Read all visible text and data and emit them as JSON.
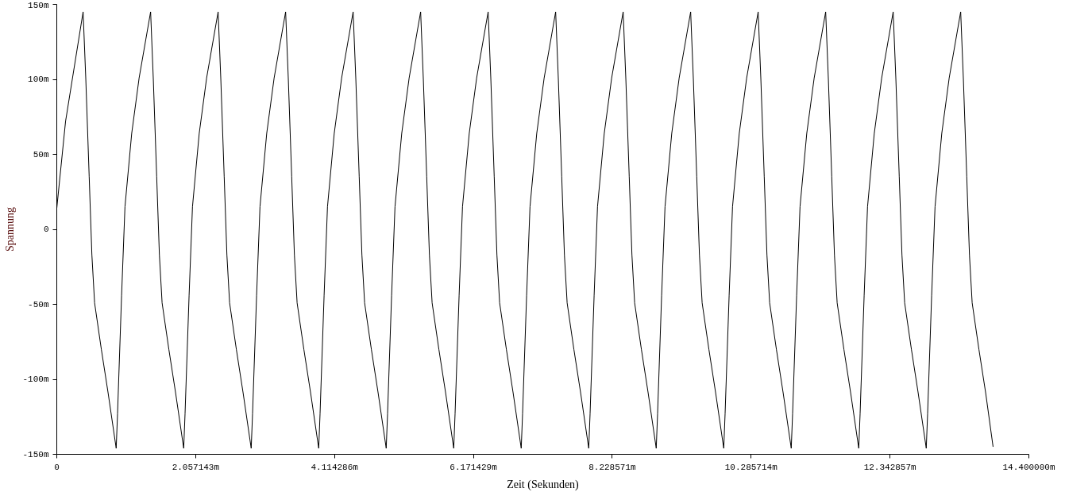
{
  "chart_data": {
    "type": "line",
    "xlabel": "Zeit (Sekunden)",
    "ylabel": "Spannung",
    "xlim": [
      0,
      14.4
    ],
    "ylim": [
      -150,
      150
    ],
    "xticks": [
      0,
      {
        "value": 2.057143,
        "label": "2.057143m"
      },
      {
        "value": 4.114286,
        "label": "4.114286m"
      },
      {
        "value": 6.171429,
        "label": "6.171429m"
      },
      {
        "value": 8.228571,
        "label": "8.228571m"
      },
      {
        "value": 10.285714,
        "label": "10.285714m"
      },
      {
        "value": 12.342857,
        "label": "12.342857m"
      },
      {
        "value": 14.4,
        "label": "14.400000m"
      }
    ],
    "yticks": [
      {
        "value": -150,
        "label": "-150m"
      },
      {
        "value": -100,
        "label": "-100m"
      },
      {
        "value": -50,
        "label": "-50m"
      },
      0,
      {
        "value": 50,
        "label": "50m"
      },
      {
        "value": 100,
        "label": "100m"
      },
      {
        "value": 150,
        "label": "150m"
      }
    ],
    "grid": false,
    "series": [
      {
        "color": "#000000",
        "x": [
          0,
          0.13,
          0.39,
          0.43,
          0.48,
          0.52,
          0.56,
          0.66,
          0.76,
          0.88,
          0.9,
          0.96,
          1.01,
          1.11,
          1.22,
          1.39,
          1.43,
          1.48,
          1.52,
          1.56,
          1.66,
          1.76,
          1.88,
          1.9,
          1.96,
          2.01,
          2.11,
          2.22,
          2.39,
          2.43,
          2.48,
          2.52,
          2.56,
          2.66,
          2.76,
          2.88,
          2.9,
          2.96,
          3.01,
          3.11,
          3.22,
          3.39,
          3.43,
          3.48,
          3.52,
          3.56,
          3.66,
          3.76,
          3.88,
          3.9,
          3.96,
          4.01,
          4.11,
          4.22,
          4.39,
          4.43,
          4.48,
          4.52,
          4.56,
          4.66,
          4.76,
          4.88,
          4.9,
          4.96,
          5.01,
          5.11,
          5.22,
          5.39,
          5.43,
          5.48,
          5.52,
          5.56,
          5.66,
          5.76,
          5.88,
          5.9,
          5.96,
          6.01,
          6.11,
          6.22,
          6.39,
          6.43,
          6.48,
          6.52,
          6.56,
          6.66,
          6.76,
          6.88,
          6.9,
          6.96,
          7.01,
          7.11,
          7.22,
          7.39,
          7.43,
          7.48,
          7.52,
          7.56,
          7.66,
          7.76,
          7.88,
          7.9,
          7.96,
          8.01,
          8.11,
          8.22,
          8.39,
          8.43,
          8.48,
          8.52,
          8.56,
          8.66,
          8.76,
          8.88,
          8.9,
          8.96,
          9.01,
          9.11,
          9.22,
          9.39,
          9.43,
          9.48,
          9.52,
          9.56,
          9.66,
          9.76,
          9.88,
          9.9,
          9.96,
          10.01,
          10.11,
          10.22,
          10.39,
          10.43,
          10.48,
          10.52,
          10.56,
          10.66,
          10.76,
          10.88,
          10.9,
          10.96,
          11.01,
          11.11,
          11.22,
          11.39,
          11.43,
          11.48,
          11.52,
          11.56,
          11.66,
          11.76,
          11.88,
          11.9,
          11.96,
          12.01,
          12.11,
          12.22,
          12.39,
          12.43,
          12.48,
          12.52,
          12.56,
          12.66,
          12.76,
          12.88,
          12.9,
          12.96,
          13.01,
          13.11,
          13.22,
          13.39,
          13.43,
          13.48,
          13.52,
          13.56,
          13.66,
          13.76,
          13.87
        ],
        "values": [
          14,
          72,
          145,
          100,
          35,
          -17,
          -49,
          -80,
          -109,
          -146,
          -123,
          -44,
          15,
          64,
          101,
          145,
          100,
          35,
          -17,
          -49,
          -80,
          -109,
          -146,
          -123,
          -44,
          15,
          64,
          101,
          145,
          100,
          35,
          -17,
          -49,
          -80,
          -109,
          -146,
          -123,
          -44,
          15,
          64,
          101,
          145,
          100,
          35,
          -17,
          -49,
          -80,
          -109,
          -146,
          -123,
          -44,
          15,
          64,
          101,
          145,
          100,
          35,
          -17,
          -49,
          -80,
          -109,
          -146,
          -123,
          -44,
          15,
          64,
          101,
          145,
          100,
          35,
          -17,
          -49,
          -80,
          -109,
          -146,
          -123,
          -44,
          15,
          64,
          101,
          145,
          100,
          35,
          -17,
          -49,
          -80,
          -109,
          -146,
          -123,
          -44,
          15,
          64,
          101,
          145,
          100,
          35,
          -17,
          -49,
          -80,
          -109,
          -146,
          -123,
          -44,
          15,
          64,
          101,
          145,
          100,
          35,
          -17,
          -49,
          -80,
          -109,
          -146,
          -123,
          -44,
          15,
          64,
          101,
          145,
          100,
          35,
          -17,
          -49,
          -80,
          -109,
          -146,
          -123,
          -44,
          15,
          64,
          101,
          145,
          100,
          35,
          -17,
          -49,
          -80,
          -109,
          -146,
          -123,
          -44,
          15,
          64,
          101,
          145,
          100,
          35,
          -17,
          -49,
          -80,
          -109,
          -146,
          -123,
          -44,
          15,
          64,
          101,
          145,
          100,
          35,
          -17,
          -49,
          -80,
          -109,
          -146,
          -123,
          -44,
          15,
          64,
          101,
          145,
          100,
          35,
          -17,
          -49,
          -80,
          -109,
          -145
        ]
      }
    ]
  }
}
